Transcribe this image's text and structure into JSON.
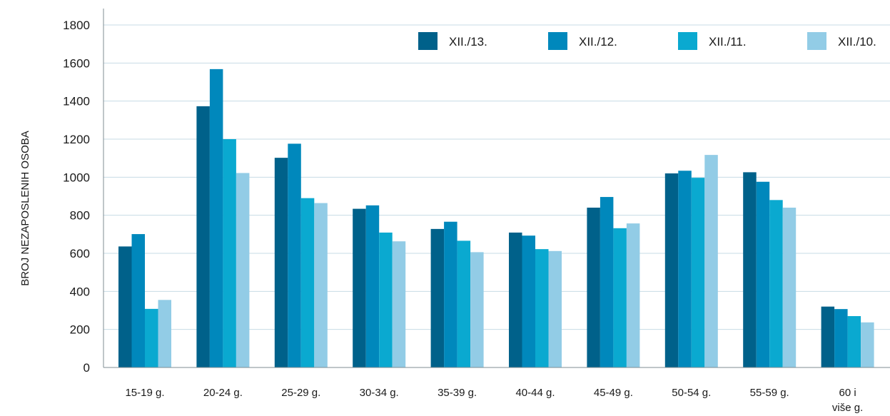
{
  "chart_data": {
    "type": "bar",
    "ylabel": "BROJ NEZAPOSLENIH OSOBA",
    "xlabel": "",
    "ylim": [
      0,
      1800
    ],
    "yticks": [
      0,
      200,
      400,
      600,
      800,
      1000,
      1200,
      1400,
      1600,
      1800
    ],
    "grid": true,
    "legend_position": "top-right",
    "categories": [
      [
        "15-19 g."
      ],
      [
        "20-24 g."
      ],
      [
        "25-29 g."
      ],
      [
        "30-34 g."
      ],
      [
        "35-39 g."
      ],
      [
        "40-44 g."
      ],
      [
        "45-49 g."
      ],
      [
        "50-54 g."
      ],
      [
        "55-59 g."
      ],
      [
        "60 i",
        "više g."
      ]
    ],
    "series": [
      {
        "name": "XII./13.",
        "color": "#00618a",
        "values": [
          636,
          1373,
          1102,
          834,
          728,
          709,
          840,
          1020,
          1026,
          320
        ]
      },
      {
        "name": "XII./12.",
        "color": "#0088bc",
        "values": [
          701,
          1568,
          1176,
          852,
          766,
          693,
          896,
          1034,
          976,
          307
        ]
      },
      {
        "name": "XII./11.",
        "color": "#0aa9d0",
        "values": [
          308,
          1200,
          890,
          709,
          666,
          622,
          732,
          997,
          880,
          270
        ]
      },
      {
        "name": "XII./10.",
        "color": "#92cce6",
        "values": [
          355,
          1022,
          864,
          663,
          606,
          612,
          757,
          1117,
          840,
          237
        ]
      }
    ]
  }
}
